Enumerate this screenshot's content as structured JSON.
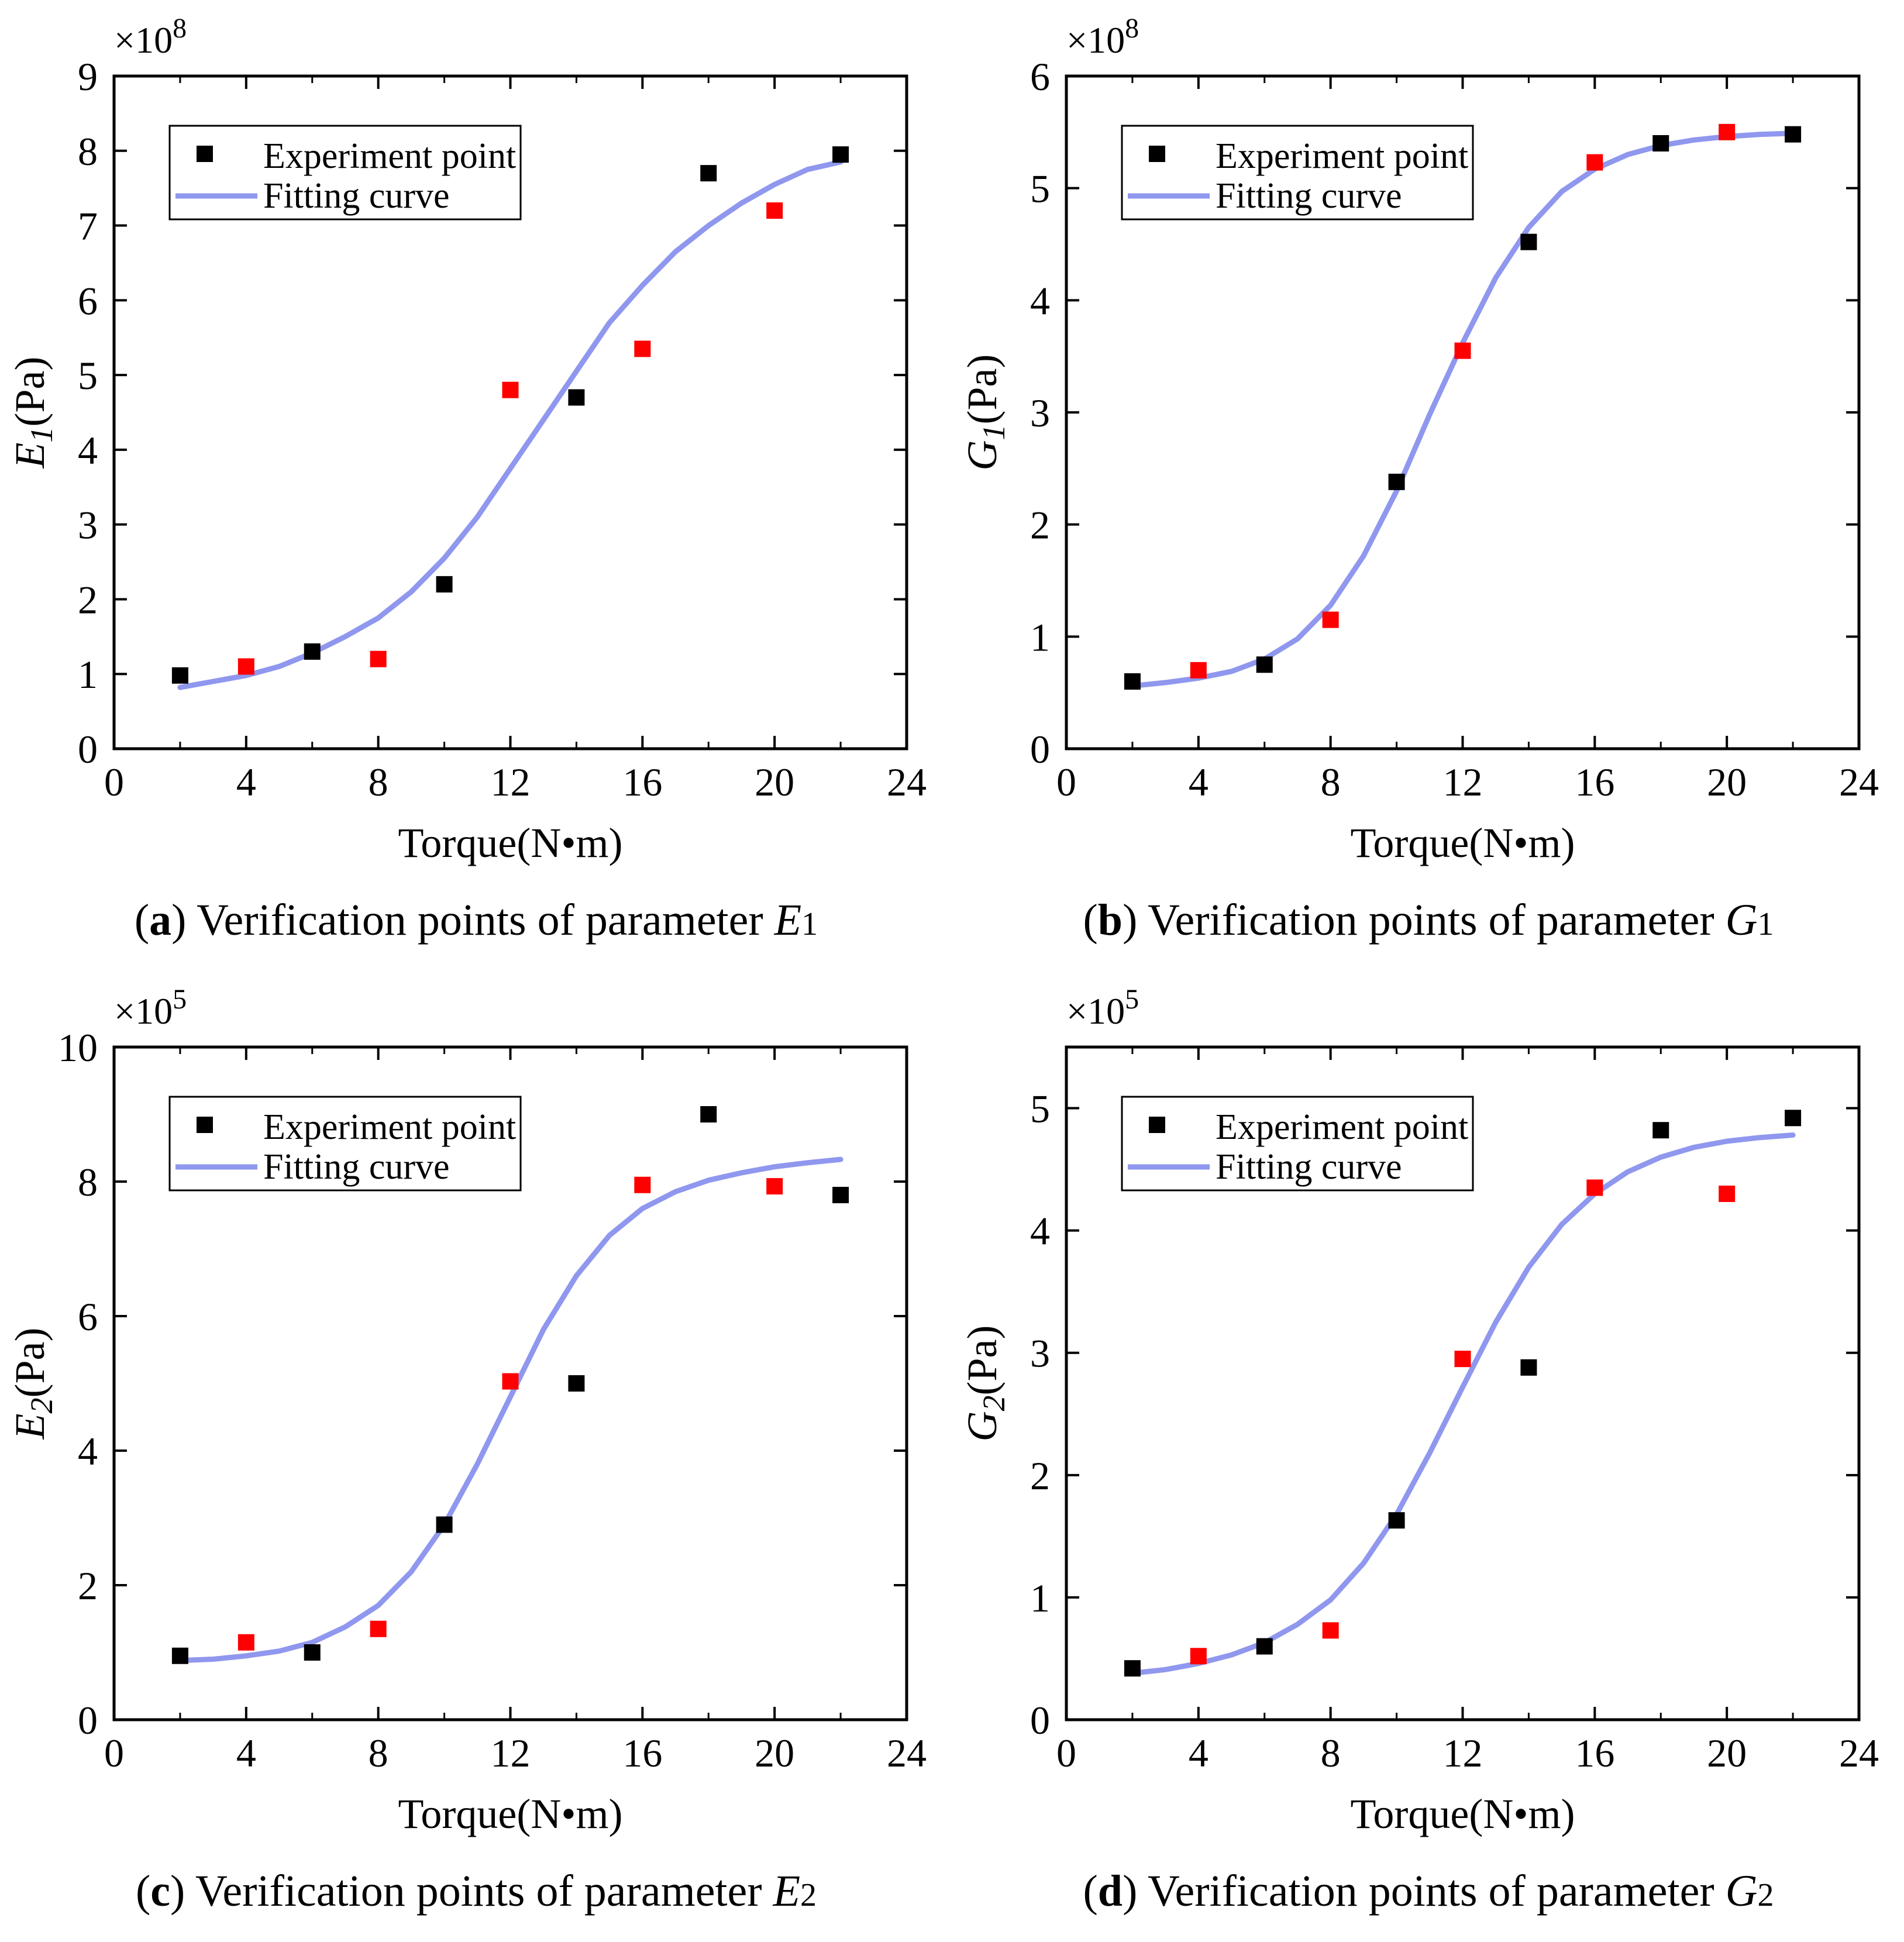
{
  "colors": {
    "black_points": "#000000",
    "red_points": "#ff0000",
    "fit_curve": "#8f97ee"
  },
  "chart_data": [
    {
      "id": "a",
      "type": "scatter",
      "caption_label": "a",
      "caption_text": "Verification points of parameter",
      "caption_var": "E",
      "caption_sub": "1",
      "title": "",
      "xlabel": "Torque(N•m)",
      "ylabel_var": "E",
      "ylabel_sub": "1",
      "ylabel_unit": "(Pa)",
      "exponent_text": "×10",
      "exponent_power": "8",
      "xlim": [
        0,
        24
      ],
      "ylim": [
        0,
        9
      ],
      "xticks": [
        0,
        4,
        8,
        12,
        16,
        20,
        24
      ],
      "yticks": [
        0,
        1,
        2,
        3,
        4,
        5,
        6,
        7,
        8,
        9
      ],
      "legend": {
        "position": "top-left",
        "entries": [
          "Experiment point",
          "Fitting curve"
        ]
      },
      "series": [
        {
          "name": "Experiment point",
          "color": "#000000",
          "x": [
            2,
            6,
            10,
            14,
            18,
            22
          ],
          "y": [
            0.98,
            1.3,
            2.2,
            4.7,
            7.7,
            7.95
          ]
        },
        {
          "name": "Verification point",
          "color": "#ff0000",
          "x": [
            4,
            8,
            12,
            16,
            20
          ],
          "y": [
            1.1,
            1.2,
            4.8,
            5.35,
            7.2
          ]
        }
      ],
      "fit": {
        "name": "Fitting curve",
        "x": [
          2,
          3,
          4,
          5,
          6,
          7,
          8,
          9,
          10,
          11,
          12,
          13,
          14,
          15,
          16,
          17,
          18,
          19,
          20,
          21,
          22
        ],
        "y": [
          0.82,
          0.9,
          0.98,
          1.1,
          1.28,
          1.5,
          1.75,
          2.1,
          2.55,
          3.1,
          3.75,
          4.4,
          5.05,
          5.7,
          6.2,
          6.65,
          7.0,
          7.3,
          7.55,
          7.75,
          7.85
        ]
      }
    },
    {
      "id": "b",
      "type": "scatter",
      "caption_label": "b",
      "caption_text": "Verification points of parameter",
      "caption_var": "G",
      "caption_sub": "1",
      "title": "",
      "xlabel": "Torque(N•m)",
      "ylabel_var": "G",
      "ylabel_sub": "1",
      "ylabel_unit": "(Pa)",
      "exponent_text": "×10",
      "exponent_power": "8",
      "xlim": [
        0,
        24
      ],
      "ylim": [
        0,
        6
      ],
      "xticks": [
        0,
        4,
        8,
        12,
        16,
        20,
        24
      ],
      "yticks": [
        0,
        1,
        2,
        3,
        4,
        5,
        6
      ],
      "legend": {
        "position": "top-left",
        "entries": [
          "Experiment point",
          "Fitting curve"
        ]
      },
      "series": [
        {
          "name": "Experiment point",
          "color": "#000000",
          "x": [
            2,
            6,
            10,
            14,
            18,
            22
          ],
          "y": [
            0.6,
            0.75,
            2.38,
            4.52,
            5.4,
            5.48
          ]
        },
        {
          "name": "Verification point",
          "color": "#ff0000",
          "x": [
            4,
            8,
            12,
            16,
            20
          ],
          "y": [
            0.7,
            1.15,
            3.55,
            5.23,
            5.5
          ]
        }
      ],
      "fit": {
        "name": "Fitting curve",
        "x": [
          2,
          3,
          4,
          5,
          6,
          7,
          8,
          9,
          10,
          11,
          12,
          13,
          14,
          15,
          16,
          17,
          18,
          19,
          20,
          21,
          22
        ],
        "y": [
          0.56,
          0.59,
          0.63,
          0.69,
          0.8,
          0.98,
          1.28,
          1.72,
          2.3,
          2.98,
          3.62,
          4.2,
          4.65,
          4.97,
          5.17,
          5.3,
          5.38,
          5.43,
          5.46,
          5.48,
          5.49
        ]
      }
    },
    {
      "id": "c",
      "type": "scatter",
      "caption_label": "c",
      "caption_text": "Verification points of parameter",
      "caption_var": "E",
      "caption_sub": "2",
      "title": "",
      "xlabel": "Torque(N•m)",
      "ylabel_var": "E",
      "ylabel_sub": "2",
      "ylabel_unit": "(Pa)",
      "exponent_text": "×10",
      "exponent_power": "5",
      "xlim": [
        0,
        24
      ],
      "ylim": [
        0,
        10
      ],
      "xticks": [
        0,
        4,
        8,
        12,
        16,
        20,
        24
      ],
      "yticks": [
        0,
        2,
        4,
        6,
        8,
        10
      ],
      "legend": {
        "position": "top-left",
        "entries": [
          "Experiment point",
          "Fitting curve"
        ]
      },
      "series": [
        {
          "name": "Experiment point",
          "color": "#000000",
          "x": [
            2,
            6,
            10,
            14,
            18,
            22
          ],
          "y": [
            0.95,
            1.0,
            2.9,
            5.0,
            9.0,
            7.8
          ]
        },
        {
          "name": "Verification point",
          "color": "#ff0000",
          "x": [
            4,
            8,
            12,
            16,
            20
          ],
          "y": [
            1.15,
            1.35,
            5.03,
            7.95,
            7.93
          ]
        }
      ],
      "fit": {
        "name": "Fitting curve",
        "x": [
          2,
          3,
          4,
          5,
          6,
          7,
          8,
          9,
          10,
          11,
          12,
          13,
          14,
          15,
          16,
          17,
          18,
          19,
          20,
          21,
          22
        ],
        "y": [
          0.88,
          0.9,
          0.95,
          1.02,
          1.15,
          1.38,
          1.7,
          2.2,
          2.9,
          3.8,
          4.8,
          5.8,
          6.6,
          7.2,
          7.6,
          7.85,
          8.02,
          8.13,
          8.22,
          8.28,
          8.33
        ]
      }
    },
    {
      "id": "d",
      "type": "scatter",
      "caption_label": "d",
      "caption_text": "Verification points of parameter",
      "caption_var": "G",
      "caption_sub": "2",
      "title": "",
      "xlabel": "Torque(N•m)",
      "ylabel_var": "G",
      "ylabel_sub": "2",
      "ylabel_unit": "(Pa)",
      "exponent_text": "×10",
      "exponent_power": "5",
      "xlim": [
        0,
        24
      ],
      "ylim": [
        0,
        5.5
      ],
      "xticks": [
        0,
        4,
        8,
        12,
        16,
        20,
        24
      ],
      "yticks": [
        0,
        1,
        2,
        3,
        4,
        5
      ],
      "legend": {
        "position": "top-left",
        "entries": [
          "Experiment point",
          "Fitting curve"
        ]
      },
      "series": [
        {
          "name": "Experiment point",
          "color": "#000000",
          "x": [
            2,
            6,
            10,
            14,
            18,
            22
          ],
          "y": [
            0.42,
            0.6,
            1.63,
            2.88,
            4.82,
            4.92
          ]
        },
        {
          "name": "Verification point",
          "color": "#ff0000",
          "x": [
            4,
            8,
            12,
            16,
            20
          ],
          "y": [
            0.52,
            0.73,
            2.95,
            4.35,
            4.3
          ]
        }
      ],
      "fit": {
        "name": "Fitting curve",
        "x": [
          2,
          3,
          4,
          5,
          6,
          7,
          8,
          9,
          10,
          11,
          12,
          13,
          14,
          15,
          16,
          17,
          18,
          19,
          20,
          21,
          22
        ],
        "y": [
          0.38,
          0.41,
          0.46,
          0.53,
          0.63,
          0.78,
          0.98,
          1.28,
          1.68,
          2.18,
          2.72,
          3.25,
          3.7,
          4.05,
          4.3,
          4.48,
          4.6,
          4.68,
          4.73,
          4.76,
          4.78
        ]
      }
    }
  ]
}
